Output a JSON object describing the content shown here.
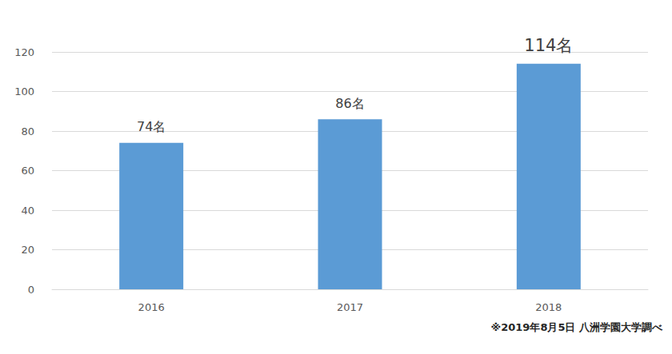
{
  "chart_data": {
    "type": "bar",
    "categories": [
      "2016",
      "2017",
      "2018"
    ],
    "values": [
      74,
      86,
      114
    ],
    "value_labels": [
      "74名",
      "86名",
      "114名"
    ],
    "data_labels": true,
    "color": "#5b9bd5",
    "ylim": [
      0,
      120
    ],
    "yticks": [
      0,
      20,
      40,
      60,
      80,
      100,
      120
    ],
    "grid": true,
    "annotation": "※2019年8月5日 八洲学園大学調べ"
  }
}
